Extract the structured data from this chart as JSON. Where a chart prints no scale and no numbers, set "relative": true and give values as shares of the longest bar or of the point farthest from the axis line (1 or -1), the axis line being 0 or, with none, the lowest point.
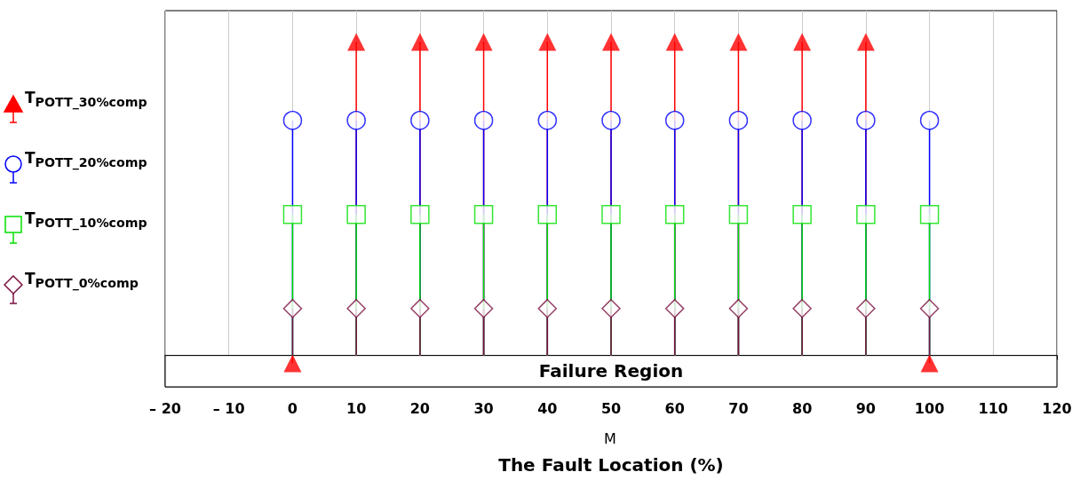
{
  "chart_data": {
    "type": "lollipop",
    "relative": true,
    "xlabel": "The Fault Location (%)",
    "annotations": [
      "M"
    ],
    "x": [
      0,
      10,
      20,
      30,
      40,
      50,
      60,
      70,
      80,
      90,
      100
    ],
    "xlim": [
      -20,
      120
    ],
    "xticks": [
      {
        "value": -20,
        "label": "– 20"
      },
      {
        "value": -10,
        "label": "– 10"
      },
      0,
      10,
      20,
      30,
      40,
      50,
      60,
      70,
      80,
      90,
      100,
      110,
      120
    ],
    "grid": "x",
    "legend": "left",
    "tick_labels": "x",
    "bands": [
      {
        "axis": "y",
        "from": -0.1,
        "to": 0,
        "label": "Failure Region",
        "color": "#ffffff"
      }
    ],
    "series": [
      {
        "name": "T$_{POTT_30%comp}$",
        "color": "#ff0000",
        "marker": "triangle",
        "values": [
          -0.025,
          1,
          1,
          1,
          1,
          1,
          1,
          1,
          1,
          1,
          -0.025
        ]
      },
      {
        "name": "T$_{POTT_20%comp}$",
        "color": "#0000ff",
        "marker": "circle",
        "values": [
          0.75,
          0.75,
          0.75,
          0.75,
          0.75,
          0.75,
          0.75,
          0.75,
          0.75,
          0.75,
          0.75
        ]
      },
      {
        "name": "T$_{POTT_10%comp}$",
        "color": "#00e000",
        "marker": "square",
        "values": [
          0.45,
          0.45,
          0.45,
          0.45,
          0.45,
          0.45,
          0.45,
          0.45,
          0.45,
          0.45,
          0.45
        ]
      },
      {
        "name": "T$_{POTT_0%comp}$",
        "color": "#7b1040",
        "marker": "diamond",
        "values": [
          0.15,
          0.15,
          0.15,
          0.15,
          0.15,
          0.15,
          0.15,
          0.15,
          0.15,
          0.15,
          0.15
        ]
      }
    ]
  }
}
